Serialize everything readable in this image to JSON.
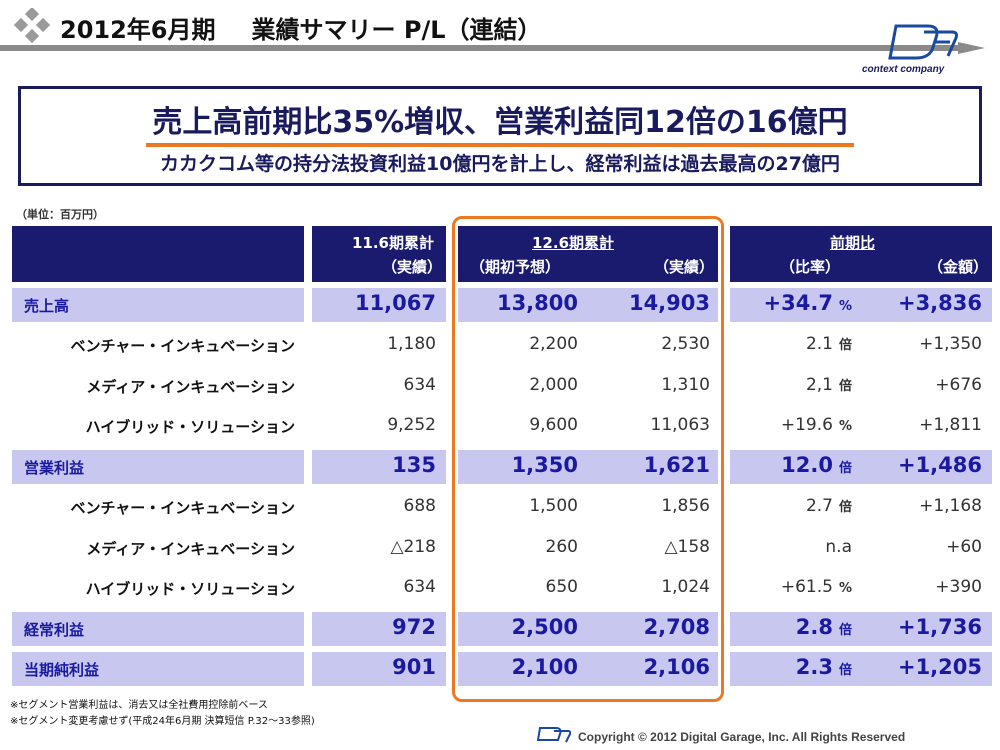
{
  "header": {
    "period": "2012年6月期",
    "title": "業績サマリー P/L（連結）",
    "logo_text": "context company"
  },
  "headline": {
    "main": "売上高前期比35%増収、営業利益同12倍の16億円",
    "sub": "カカクコム等の持分法投資利益10億円を計上し、経常利益は過去最高の27億円"
  },
  "unit_label": "（単位：百万円）",
  "table": {
    "col_group_prev": "11.6期累計",
    "col_prev_actual": "（実績）",
    "col_group_cur": "12.6期累計",
    "col_cur_forecast": "（期初予想）",
    "col_cur_actual": "（実績）",
    "col_group_yoy": "前期比",
    "col_yoy_ratio": "（比率）",
    "col_yoy_amount": "（金額）",
    "rows": [
      {
        "label": "売上高",
        "type": "main",
        "prev": "11,067",
        "forecast": "13,800",
        "actual": "14,903",
        "ratio": "+34.7",
        "ratio_unit": "%",
        "amount": "+3,836"
      },
      {
        "label": "ベンチャー・インキュベーション",
        "type": "sub",
        "prev": "1,180",
        "forecast": "2,200",
        "actual": "2,530",
        "ratio": "2.1",
        "ratio_unit": "倍",
        "amount": "+1,350"
      },
      {
        "label": "メディア・インキュベーション",
        "type": "sub",
        "prev": "634",
        "forecast": "2,000",
        "actual": "1,310",
        "ratio": "2,1",
        "ratio_unit": "倍",
        "amount": "+676"
      },
      {
        "label": "ハイブリッド・ソリューション",
        "type": "sub",
        "prev": "9,252",
        "forecast": "9,600",
        "actual": "11,063",
        "ratio": "+19.6",
        "ratio_unit": "%",
        "amount": "+1,811"
      },
      {
        "label": "営業利益",
        "type": "main",
        "prev": "135",
        "forecast": "1,350",
        "actual": "1,621",
        "ratio": "12.0",
        "ratio_unit": "倍",
        "amount": "+1,486"
      },
      {
        "label": "ベンチャー・インキュベーション",
        "type": "sub",
        "prev": "688",
        "forecast": "1,500",
        "actual": "1,856",
        "ratio": "2.7",
        "ratio_unit": "倍",
        "amount": "+1,168"
      },
      {
        "label": "メディア・インキュベーション",
        "type": "sub",
        "prev": "△218",
        "forecast": "260",
        "actual": "△158",
        "ratio": "n.a",
        "ratio_unit": "",
        "amount": "+60"
      },
      {
        "label": "ハイブリッド・ソリューション",
        "type": "sub",
        "prev": "634",
        "forecast": "650",
        "actual": "1,024",
        "ratio": "+61.5",
        "ratio_unit": "%",
        "amount": "+390"
      },
      {
        "label": "経常利益",
        "type": "main",
        "prev": "972",
        "forecast": "2,500",
        "actual": "2,708",
        "ratio": "2.8",
        "ratio_unit": "倍",
        "amount": "+1,736"
      },
      {
        "label": "当期純利益",
        "type": "main",
        "prev": "901",
        "forecast": "2,100",
        "actual": "2,106",
        "ratio": "2.3",
        "ratio_unit": "倍",
        "amount": "+1,205"
      }
    ]
  },
  "notes": [
    "※セグメント営業利益は、消去又は全社費用控除前ベース",
    "※セグメント変更考慮せず(平成24年6月期 決算短信 P.32～33参照)"
  ],
  "footer": {
    "copyright": "Copyright © 2012 Digital Garage, Inc. All Rights Reserved"
  },
  "colors": {
    "navy": "#1a1a6e",
    "band": "#c7c7f0",
    "highlight_orange": "#ee7722",
    "value_blue": "#1a1aa0"
  }
}
